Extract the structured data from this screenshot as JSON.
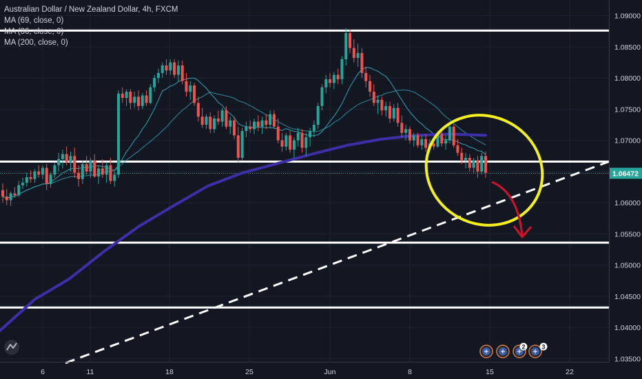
{
  "legend": {
    "title": "Australian Dollar / New Zealand Dollar, 4h, FXCM",
    "ma1": "MA (69, close, 0)",
    "ma2": "MA (36, close, 0)",
    "ma3": "MA (200, close, 0)"
  },
  "chart_data": {
    "type": "candlestick",
    "instrument": "Australian Dollar / New Zealand Dollar",
    "timeframe": "4h",
    "source": "FXCM",
    "y_ticks": [
      "1.09000",
      "1.08500",
      "1.08000",
      "1.07500",
      "1.07000",
      "1.06500",
      "1.06000",
      "1.05500",
      "1.05000",
      "1.04500",
      "1.04000",
      "1.03500"
    ],
    "x_ticks": [
      "6",
      "11",
      "18",
      "25",
      "Jun",
      "8",
      "15",
      "22"
    ],
    "ylim": [
      1.0345,
      1.0925
    ],
    "last_price": "1.06472",
    "horizontal_levels": [
      1.0876,
      1.0666,
      1.0536,
      1.0432
    ],
    "trendline": {
      "from_price": 1.0343,
      "to_price": 1.0666,
      "style": "dashed"
    },
    "ma_200": [
      1.0395,
      1.0445,
      1.0478,
      1.0522,
      1.0562,
      1.0595,
      1.0627,
      1.0648,
      1.0663,
      1.0678,
      1.0692,
      1.0702,
      1.0708,
      1.071,
      1.0708
    ],
    "candles": [
      [
        1.062,
        1.0631,
        1.06,
        1.061
      ],
      [
        1.061,
        1.0622,
        1.0596,
        1.0604
      ],
      [
        1.0604,
        1.0618,
        1.0595,
        1.0615
      ],
      [
        1.0615,
        1.0625,
        1.0608,
        1.0612
      ],
      [
        1.0612,
        1.0635,
        1.0609,
        1.0628
      ],
      [
        1.0628,
        1.064,
        1.0622,
        1.0632
      ],
      [
        1.0632,
        1.0648,
        1.0626,
        1.0641
      ],
      [
        1.0641,
        1.0652,
        1.0632,
        1.0638
      ],
      [
        1.0638,
        1.0654,
        1.0632,
        1.065
      ],
      [
        1.065,
        1.066,
        1.064,
        1.0645
      ],
      [
        1.0645,
        1.066,
        1.0638,
        1.0656
      ],
      [
        1.0656,
        1.0662,
        1.062,
        1.063
      ],
      [
        1.063,
        1.0648,
        1.0624,
        1.0645
      ],
      [
        1.0645,
        1.0665,
        1.064,
        1.066
      ],
      [
        1.066,
        1.068,
        1.065,
        1.067
      ],
      [
        1.067,
        1.0685,
        1.0655,
        1.0678
      ],
      [
        1.0678,
        1.069,
        1.066,
        1.0665
      ],
      [
        1.0665,
        1.0682,
        1.065,
        1.0675
      ],
      [
        1.0675,
        1.0688,
        1.064,
        1.0648
      ],
      [
        1.0648,
        1.066,
        1.0626,
        1.0638
      ],
      [
        1.0638,
        1.0668,
        1.063,
        1.0662
      ],
      [
        1.0662,
        1.0675,
        1.0645,
        1.065
      ],
      [
        1.065,
        1.0672,
        1.064,
        1.0668
      ],
      [
        1.0668,
        1.0678,
        1.064,
        1.0642
      ],
      [
        1.0642,
        1.066,
        1.063,
        1.0655
      ],
      [
        1.0655,
        1.067,
        1.064,
        1.0645
      ],
      [
        1.0645,
        1.0665,
        1.0632,
        1.066
      ],
      [
        1.066,
        1.0672,
        1.063,
        1.0635
      ],
      [
        1.0635,
        1.065,
        1.0626,
        1.0645
      ],
      [
        1.0645,
        1.078,
        1.064,
        1.0775
      ],
      [
        1.0775,
        1.0785,
        1.076,
        1.0768
      ],
      [
        1.0768,
        1.0782,
        1.0755,
        1.0778
      ],
      [
        1.0778,
        1.0782,
        1.075,
        1.076
      ],
      [
        1.076,
        1.0778,
        1.0752,
        1.077
      ],
      [
        1.077,
        1.078,
        1.0748,
        1.0755
      ],
      [
        1.0755,
        1.0776,
        1.075,
        1.0772
      ],
      [
        1.0772,
        1.078,
        1.0755,
        1.076
      ],
      [
        1.076,
        1.079,
        1.0758,
        1.0785
      ],
      [
        1.0785,
        1.0805,
        1.0778,
        1.08
      ],
      [
        1.08,
        1.0815,
        1.0792,
        1.0808
      ],
      [
        1.0808,
        1.0825,
        1.08,
        1.082
      ],
      [
        1.082,
        1.083,
        1.0805,
        1.0812
      ],
      [
        1.0812,
        1.083,
        1.0805,
        1.0825
      ],
      [
        1.0825,
        1.083,
        1.08,
        1.0805
      ],
      [
        1.0805,
        1.0828,
        1.0795,
        1.082
      ],
      [
        1.082,
        1.0828,
        1.079,
        1.0795
      ],
      [
        1.0795,
        1.0808,
        1.077,
        1.0778
      ],
      [
        1.0778,
        1.0795,
        1.0765,
        1.0788
      ],
      [
        1.0788,
        1.0792,
        1.0755,
        1.076
      ],
      [
        1.076,
        1.077,
        1.073,
        1.0738
      ],
      [
        1.0738,
        1.0752,
        1.072,
        1.0725
      ],
      [
        1.0725,
        1.0742,
        1.0718,
        1.0738
      ],
      [
        1.0738,
        1.0745,
        1.0712,
        1.0718
      ],
      [
        1.0718,
        1.074,
        1.0712,
        1.0735
      ],
      [
        1.0735,
        1.0748,
        1.0725,
        1.073
      ],
      [
        1.073,
        1.0752,
        1.0722,
        1.0748
      ],
      [
        1.0748,
        1.0755,
        1.0718,
        1.0722
      ],
      [
        1.0722,
        1.0738,
        1.071,
        1.0732
      ],
      [
        1.0732,
        1.0738,
        1.0702,
        1.0708
      ],
      [
        1.0708,
        1.0722,
        1.0665,
        1.0672
      ],
      [
        1.0672,
        1.072,
        1.0668,
        1.0715
      ],
      [
        1.0715,
        1.073,
        1.0705,
        1.0722
      ],
      [
        1.0722,
        1.0732,
        1.0712,
        1.0718
      ],
      [
        1.0718,
        1.0735,
        1.071,
        1.073
      ],
      [
        1.073,
        1.074,
        1.0715,
        1.0722
      ],
      [
        1.0722,
        1.0738,
        1.071,
        1.0732
      ],
      [
        1.0732,
        1.0742,
        1.0718,
        1.0725
      ],
      [
        1.0725,
        1.0748,
        1.072,
        1.0742
      ],
      [
        1.0742,
        1.0748,
        1.0718,
        1.0722
      ],
      [
        1.0722,
        1.0735,
        1.0695,
        1.07
      ],
      [
        1.07,
        1.0712,
        1.0682,
        1.069
      ],
      [
        1.069,
        1.0712,
        1.0684,
        1.0708
      ],
      [
        1.0708,
        1.0715,
        1.068,
        1.0685
      ],
      [
        1.0685,
        1.0705,
        1.0672,
        1.07
      ],
      [
        1.07,
        1.072,
        1.069,
        1.0712
      ],
      [
        1.0712,
        1.0718,
        1.068,
        1.0688
      ],
      [
        1.0688,
        1.0712,
        1.0675,
        1.0705
      ],
      [
        1.0705,
        1.072,
        1.069,
        1.0715
      ],
      [
        1.0715,
        1.0732,
        1.0705,
        1.0725
      ],
      [
        1.0725,
        1.076,
        1.0718,
        1.0755
      ],
      [
        1.0755,
        1.079,
        1.0748,
        1.0785
      ],
      [
        1.0785,
        1.0805,
        1.0775,
        1.0798
      ],
      [
        1.0798,
        1.0808,
        1.0785,
        1.0792
      ],
      [
        1.0792,
        1.081,
        1.0782,
        1.0805
      ],
      [
        1.0805,
        1.0815,
        1.079,
        1.0798
      ],
      [
        1.0798,
        1.0835,
        1.079,
        1.083
      ],
      [
        1.083,
        1.088,
        1.082,
        1.0872
      ],
      [
        1.0872,
        1.0878,
        1.084,
        1.0848
      ],
      [
        1.0848,
        1.0862,
        1.0825,
        1.0832
      ],
      [
        1.0832,
        1.0855,
        1.0818,
        1.084
      ],
      [
        1.084,
        1.0848,
        1.08,
        1.0808
      ],
      [
        1.0808,
        1.0818,
        1.0785,
        1.0795
      ],
      [
        1.0795,
        1.0805,
        1.077,
        1.0778
      ],
      [
        1.0778,
        1.079,
        1.0755,
        1.076
      ],
      [
        1.076,
        1.0772,
        1.0742,
        1.0765
      ],
      [
        1.0765,
        1.077,
        1.074,
        1.0748
      ],
      [
        1.0748,
        1.0762,
        1.0738,
        1.0755
      ],
      [
        1.0755,
        1.0762,
        1.0728,
        1.0735
      ],
      [
        1.0735,
        1.0758,
        1.073,
        1.0752
      ],
      [
        1.0752,
        1.076,
        1.0722,
        1.0728
      ],
      [
        1.0728,
        1.074,
        1.0705,
        1.0712
      ],
      [
        1.0712,
        1.0725,
        1.07,
        1.0718
      ],
      [
        1.0718,
        1.0722,
        1.0695,
        1.07
      ],
      [
        1.07,
        1.0712,
        1.069,
        1.0708
      ],
      [
        1.0708,
        1.0712,
        1.0688,
        1.0692
      ],
      [
        1.0692,
        1.0708,
        1.0685,
        1.0702
      ],
      [
        1.0702,
        1.071,
        1.0682,
        1.0688
      ],
      [
        1.0688,
        1.0702,
        1.068,
        1.0695
      ],
      [
        1.0695,
        1.0705,
        1.0685,
        1.069
      ],
      [
        1.069,
        1.0715,
        1.0688,
        1.071
      ],
      [
        1.071,
        1.0718,
        1.069,
        1.0695
      ],
      [
        1.0695,
        1.0708,
        1.0685,
        1.07
      ],
      [
        1.07,
        1.0728,
        1.0695,
        1.0722
      ],
      [
        1.0722,
        1.0725,
        1.0688,
        1.0692
      ],
      [
        1.0692,
        1.0702,
        1.0675,
        1.068
      ],
      [
        1.068,
        1.0688,
        1.0662,
        1.0668
      ],
      [
        1.0668,
        1.068,
        1.0655,
        1.0672
      ],
      [
        1.0672,
        1.0678,
        1.065,
        1.0656
      ],
      [
        1.0656,
        1.0672,
        1.0648,
        1.0668
      ],
      [
        1.0668,
        1.0675,
        1.064,
        1.065
      ],
      [
        1.065,
        1.068,
        1.0645,
        1.0675
      ],
      [
        1.0675,
        1.0682,
        1.064,
        1.0648
      ]
    ]
  },
  "colors": {
    "background": "#131722",
    "up": "#26a69a",
    "down": "#ef5350",
    "ma_fast": "#2aa5b4",
    "ma_200": "#3d2fa8",
    "level_line": "#ffffff",
    "ellipse": "#f5ef1e",
    "arrow": "#d1122a",
    "price_tag": "#26a69a",
    "grid": "#1e2433"
  },
  "icons": {
    "logo": "tradingview-logo-icon",
    "events": [
      "flag-event-icon",
      "flag-event-icon",
      "flag-event-icon",
      "flag-event-icon"
    ],
    "event_badges": [
      "2",
      "3"
    ]
  }
}
